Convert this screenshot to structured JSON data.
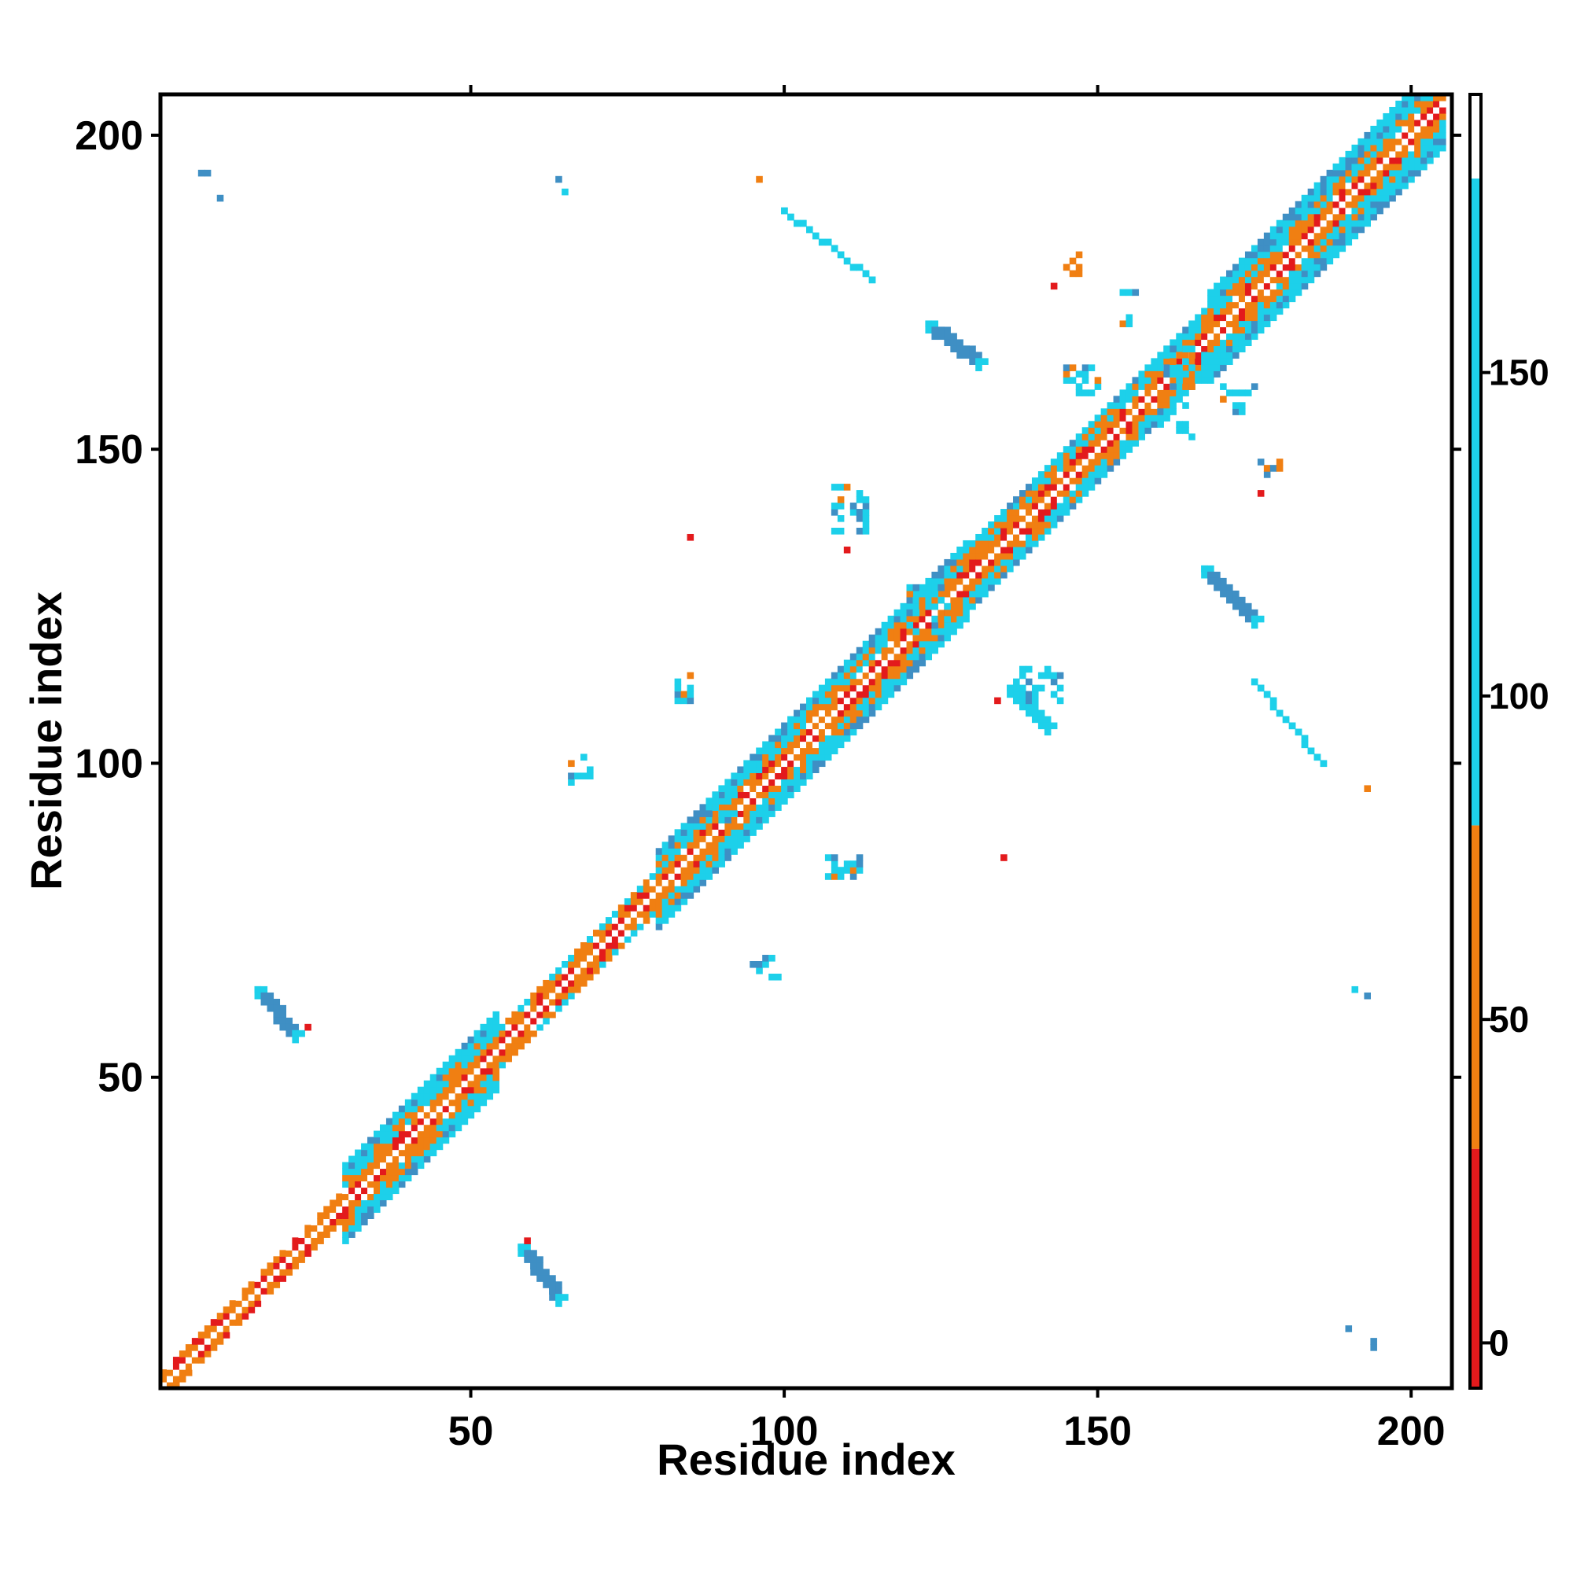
{
  "chart_data": {
    "type": "heatmap",
    "xlabel": "Residue index",
    "ylabel": "Residue index",
    "xlim": [
      1,
      206
    ],
    "ylim": [
      1,
      206
    ],
    "xticks": [
      "50",
      "100",
      "150",
      "200"
    ],
    "yticks": [
      "50",
      "100",
      "150",
      "200"
    ],
    "colorbar": {
      "range": [
        -7,
        193
      ],
      "ticks": [
        "0",
        "50",
        "100",
        "150"
      ],
      "bins": [
        {
          "from": -7,
          "to": 30,
          "color": "#e31a1c"
        },
        {
          "from": 30,
          "to": 80,
          "color": "#f07f12"
        },
        {
          "from": 80,
          "to": 180,
          "color": "#1dd0ea"
        },
        {
          "from": 180,
          "to": 193,
          "color": "#ffffff"
        }
      ]
    },
    "palette": {
      "red": "#e31a1c",
      "orange": "#f07f12",
      "cyan": "#1dd0ea",
      "steel": "#3f8fc4",
      "white": "#ffffff"
    },
    "diagonal_band": [
      {
        "from": 1,
        "to": 30,
        "half_width": 2
      },
      {
        "from": 30,
        "to": 55,
        "half_width": 6
      },
      {
        "from": 55,
        "to": 80,
        "half_width": 3
      },
      {
        "from": 80,
        "to": 130,
        "half_width": 6
      },
      {
        "from": 130,
        "to": 168,
        "half_width": 5
      },
      {
        "from": 168,
        "to": 206,
        "half_width": 7
      }
    ],
    "segments": [
      {
        "x1": 16,
        "y1": 64,
        "x2": 22,
        "y2": 57,
        "width": 2,
        "color": "steel"
      },
      {
        "x1": 58,
        "y1": 23,
        "x2": 64,
        "y2": 15,
        "width": 2,
        "color": "steel"
      },
      {
        "x1": 123,
        "y1": 170,
        "x2": 131,
        "y2": 164,
        "width": 2,
        "color": "steel"
      },
      {
        "x1": 167,
        "y1": 131,
        "x2": 175,
        "y2": 123,
        "width": 2,
        "color": "steel"
      },
      {
        "x1": 100,
        "y1": 188,
        "x2": 114,
        "y2": 177,
        "width": 1,
        "color": "cyan"
      },
      {
        "x1": 136,
        "y1": 112,
        "x2": 142,
        "y2": 106,
        "width": 2,
        "color": "cyan"
      },
      {
        "x1": 175,
        "y1": 113,
        "x2": 186,
        "y2": 100,
        "width": 1,
        "color": "cyan"
      }
    ],
    "clusters": [
      {
        "x": 66,
        "y": 97,
        "w": 4,
        "h": 5,
        "color": "cyan"
      },
      {
        "x": 95,
        "y": 66,
        "w": 5,
        "h": 4,
        "color": "cyan"
      },
      {
        "x": 108,
        "y": 137,
        "w": 6,
        "h": 8,
        "color": "cyan"
      },
      {
        "x": 137,
        "y": 110,
        "w": 8,
        "h": 6,
        "color": "cyan"
      },
      {
        "x": 145,
        "y": 159,
        "w": 6,
        "h": 5,
        "color": "cyan"
      },
      {
        "x": 160,
        "y": 152,
        "w": 6,
        "h": 6,
        "color": "cyan"
      },
      {
        "x": 154,
        "y": 170,
        "w": 5,
        "h": 6,
        "color": "cyan"
      },
      {
        "x": 170,
        "y": 156,
        "w": 6,
        "h": 5,
        "color": "cyan"
      },
      {
        "x": 145,
        "y": 178,
        "w": 3,
        "h": 4,
        "color": "orange"
      },
      {
        "x": 176,
        "y": 146,
        "w": 4,
        "h": 3,
        "color": "orange"
      },
      {
        "x": 83,
        "y": 108,
        "w": 4,
        "h": 7,
        "color": "cyan"
      },
      {
        "x": 107,
        "y": 82,
        "w": 7,
        "h": 4,
        "color": "cyan"
      },
      {
        "x": 120,
        "y": 121,
        "w": 8,
        "h": 8,
        "color": "cyan"
      },
      {
        "x": 88,
        "y": 91,
        "w": 5,
        "h": 5,
        "color": "cyan"
      },
      {
        "x": 161,
        "y": 160,
        "w": 7,
        "h": 7,
        "color": "cyan"
      }
    ],
    "points": [
      {
        "x": 7,
        "y": 194,
        "color": "steel"
      },
      {
        "x": 8,
        "y": 194,
        "color": "steel"
      },
      {
        "x": 10,
        "y": 190,
        "color": "steel"
      },
      {
        "x": 64,
        "y": 193,
        "color": "steel"
      },
      {
        "x": 65,
        "y": 191,
        "color": "cyan"
      },
      {
        "x": 96,
        "y": 193,
        "color": "orange"
      },
      {
        "x": 85,
        "y": 136,
        "color": "red"
      },
      {
        "x": 135,
        "y": 85,
        "color": "red"
      },
      {
        "x": 193,
        "y": 96,
        "color": "orange"
      },
      {
        "x": 191,
        "y": 64,
        "color": "cyan"
      },
      {
        "x": 193,
        "y": 63,
        "color": "steel"
      },
      {
        "x": 190,
        "y": 10,
        "color": "steel"
      },
      {
        "x": 194,
        "y": 8,
        "color": "steel"
      },
      {
        "x": 194,
        "y": 7,
        "color": "steel"
      },
      {
        "x": 110,
        "y": 134,
        "color": "red"
      },
      {
        "x": 134,
        "y": 110,
        "color": "red"
      },
      {
        "x": 143,
        "y": 176,
        "color": "red"
      },
      {
        "x": 176,
        "y": 143,
        "color": "red"
      },
      {
        "x": 59,
        "y": 24,
        "color": "red"
      },
      {
        "x": 24,
        "y": 58,
        "color": "red"
      }
    ]
  }
}
